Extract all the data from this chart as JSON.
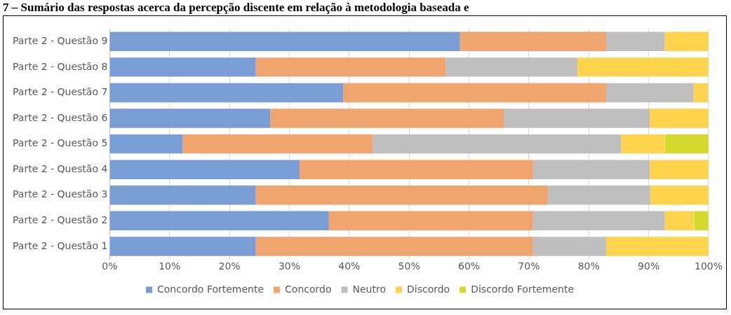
{
  "chart_data": {
    "type": "bar",
    "orientation": "horizontal",
    "stacked": true,
    "title": "7 – Sumário das respostas acerca da percepção discente em relação à metodologia baseada e",
    "categories": [
      "Parte 2 - Questão 9",
      "Parte 2 - Questão 8",
      "Parte 2 - Questão 7",
      "Parte 2 - Questão 6",
      "Parte 2 - Questão 5",
      "Parte 2 - Questão 4",
      "Parte 2 - Questão 3",
      "Parte 2 - Questão 2",
      "Parte 2 - Questão 1"
    ],
    "series": [
      {
        "name": "Concordo Fortemente",
        "color": "#7a9dd6",
        "values": [
          58.5,
          24.4,
          39.0,
          26.8,
          12.2,
          31.7,
          24.4,
          36.6,
          24.4
        ]
      },
      {
        "name": "Concordo",
        "color": "#f0a46e",
        "values": [
          24.4,
          31.7,
          43.9,
          39.0,
          31.7,
          39.0,
          48.8,
          34.1,
          46.3
        ]
      },
      {
        "name": "Neutro",
        "color": "#bfbfbf",
        "values": [
          9.8,
          22.0,
          14.6,
          24.4,
          41.5,
          19.5,
          17.1,
          22.0,
          12.2
        ]
      },
      {
        "name": "Discordo",
        "color": "#ffd34d",
        "values": [
          7.3,
          22.0,
          2.4,
          9.8,
          7.3,
          9.8,
          9.8,
          4.9,
          17.1
        ]
      },
      {
        "name": "Discordo Fortemente",
        "color": "#d6d92e",
        "values": [
          0,
          0,
          0,
          0,
          7.3,
          0,
          0,
          2.4,
          0
        ]
      }
    ],
    "xlim": [
      0,
      100
    ],
    "xticks": [
      {
        "value": 0,
        "label": "0%"
      },
      {
        "value": 10,
        "label": "10%"
      },
      {
        "value": 20,
        "label": "20%"
      },
      {
        "value": 30,
        "label": "30%"
      },
      {
        "value": 40,
        "label": "40%"
      },
      {
        "value": 50,
        "label": "50%"
      },
      {
        "value": 60,
        "label": "60%"
      },
      {
        "value": 70,
        "label": "70%"
      },
      {
        "value": 80,
        "label": "80%"
      },
      {
        "value": 90,
        "label": "90%"
      },
      {
        "value": 100,
        "label": "100%"
      }
    ],
    "grid": "x",
    "legend": "bottom"
  }
}
